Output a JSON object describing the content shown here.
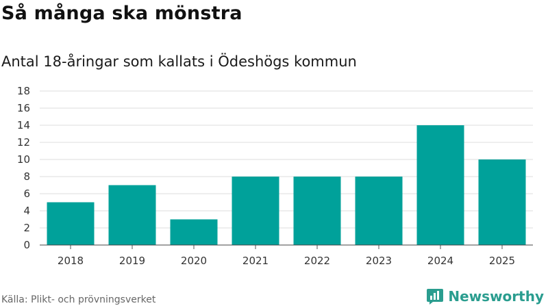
{
  "title": "Så många ska mönstra",
  "subtitle": "Antal 18-åringar som kallats i Ödeshögs kommun",
  "source": "Källa: Plikt- och prövningsverket",
  "brand": {
    "name": "Newsworthy",
    "icon": "newsworthy-logo-icon",
    "color": "#2a9d8f"
  },
  "chart_data": {
    "type": "bar",
    "title": "Så många ska mönstra",
    "subtitle": "Antal 18-åringar som kallats i Ödeshögs kommun",
    "xlabel": "",
    "ylabel": "",
    "categories": [
      "2018",
      "2019",
      "2020",
      "2021",
      "2022",
      "2023",
      "2024",
      "2025"
    ],
    "values": [
      5,
      7,
      3,
      8,
      8,
      8,
      14,
      10
    ],
    "ylim": [
      0,
      18
    ],
    "yticks": [
      0,
      2,
      4,
      6,
      8,
      10,
      12,
      14,
      16,
      18
    ],
    "grid": true,
    "legend": "none",
    "bar_color": "#00a19a"
  }
}
